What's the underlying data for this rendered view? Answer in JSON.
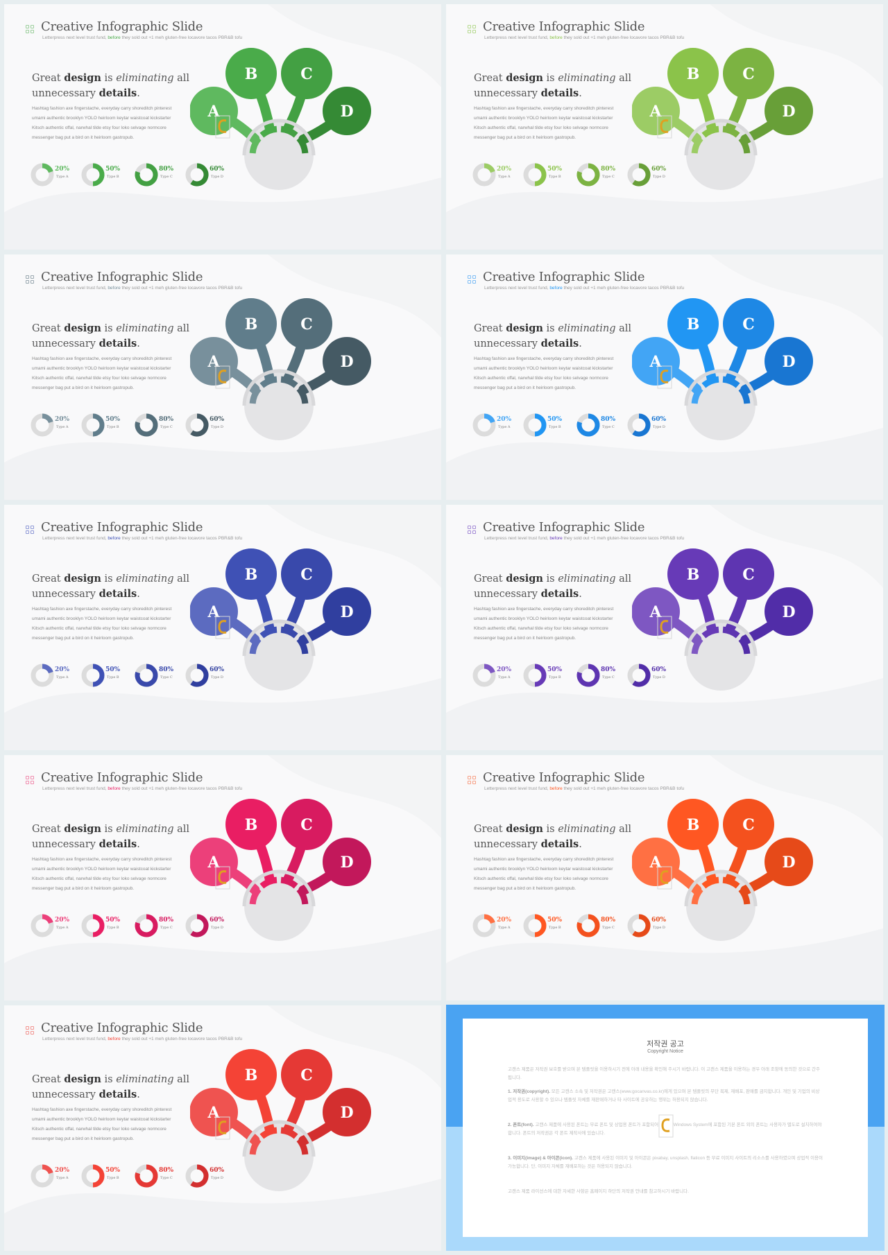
{
  "slide": {
    "title": "Creative Infographic Slide",
    "subtitle_pre": "Letterpress next level trust fund, ",
    "subtitle_hl": "before",
    "subtitle_post": " they sold out +1 meh gluten-free locavore tacos PBR&B tofu",
    "headline_1": "Great ",
    "headline_2": "design",
    "headline_3": " is ",
    "headline_4": "eliminating",
    "headline_5": " all",
    "headline_6": "unnecessary ",
    "headline_7": "details",
    "headline_8": ".",
    "body": "Hashtag fashion axe fingerstache, everyday carry shoreditch pinterest umami authentic brooklyn YOLO heirloom keytar waistcoat kickstarter Kitsch authentic offal, narwhal tilde etsy four loko selvage normcore messenger bag put a bird on it heirloom gastropub.",
    "bubbles": [
      "A",
      "B",
      "C",
      "D"
    ],
    "donuts": [
      {
        "pct": "20%",
        "type": "Type A",
        "value": 0.2
      },
      {
        "pct": "50%",
        "type": "Type B",
        "value": 0.5
      },
      {
        "pct": "80%",
        "type": "Type C",
        "value": 0.8
      },
      {
        "pct": "60%",
        "type": "Type D",
        "value": 0.6
      }
    ]
  },
  "themes": [
    {
      "name": "green",
      "colors": [
        "#5fb95f",
        "#4aab4a",
        "#43a043",
        "#358a35"
      ],
      "icon": "#9ccf9c",
      "hl": "#4aab4a"
    },
    {
      "name": "lime",
      "colors": [
        "#9ccc65",
        "#8bc34a",
        "#7cb342",
        "#689f38"
      ],
      "icon": "#b6d98f",
      "hl": "#8bc34a"
    },
    {
      "name": "blue-grey",
      "colors": [
        "#78909c",
        "#607d8b",
        "#546e7a",
        "#455a64"
      ],
      "icon": "#9aa8b0",
      "hl": "#78909c"
    },
    {
      "name": "blue",
      "colors": [
        "#42a5f5",
        "#2196f3",
        "#1e88e5",
        "#1976d2"
      ],
      "icon": "#7fbef5",
      "hl": "#2196f3"
    },
    {
      "name": "indigo",
      "colors": [
        "#5c6bc0",
        "#3f51b5",
        "#3949ab",
        "#303f9f"
      ],
      "icon": "#8f99d6",
      "hl": "#3f51b5"
    },
    {
      "name": "purple",
      "colors": [
        "#7e57c2",
        "#673ab7",
        "#5e35b1",
        "#512da8"
      ],
      "icon": "#a58bd6",
      "hl": "#673ab7"
    },
    {
      "name": "pink",
      "colors": [
        "#ec407a",
        "#e91e63",
        "#d81b60",
        "#c2185b"
      ],
      "icon": "#f08cae",
      "hl": "#e91e63"
    },
    {
      "name": "deep-orange",
      "colors": [
        "#ff7043",
        "#ff5722",
        "#f4511e",
        "#e64a19"
      ],
      "icon": "#f7a186",
      "hl": "#ff5722"
    },
    {
      "name": "red",
      "colors": [
        "#ef5350",
        "#f44336",
        "#e53935",
        "#d32f2f"
      ],
      "icon": "#f29591",
      "hl": "#f44336"
    }
  ],
  "copyright": {
    "title": "저작권 공고",
    "subtitle": "Copyright Notice",
    "intro": "고캔스 제품은 저작권 보호를 받으며 본 템플릿을 이용하시기 전에 아래 내용을 확인해 주시기 바랍니다. 이 고캔스 제품을 이용하는 경우 아래 조항에 동의한 것으로 간주됩니다.",
    "p1_title": "1. 저작권(copyright).",
    "p1": " 모든 고캔스 소속 및 저작권은 고캔스(www.gocanvas.co.kr)에게 있으며 본 템플릿의 무단 복제, 재배포, 판매를 금지합니다. 개인 및 기업의 비상업적 용도로 사용할 수 있으나 템플릿 자체를 재판매하거나 타 사이트에 공유하는 행위는 허용되지 않습니다.",
    "p2_title": "2. 폰트(font).",
    "p2": " 고캔스 제품에 사용된 폰트는 무료 폰트 및 상업용 폰트가 포함되어 있으며 Windows System에 포함된 기본 폰트 외의 폰트는 사용자가 별도로 설치하여야 합니다. 폰트의 저작권은 각 폰트 제작사에 있습니다.",
    "p3_title": "3. 이미지(image) & 아이콘(icon).",
    "p3": " 고캔스 제품에 사용된 이미지 및 아이콘은 pixabay, unsplash, flaticon 등 무료 이미지 사이트의 리소스를 사용하였으며 상업적 이용이 가능합니다. 단, 이미지 자체를 재배포하는 것은 허용되지 않습니다.",
    "outro": "고캔스 제품 라이선스에 대한 자세한 사항은 홈페이지 하단의 저작권 안내를 참고하시기 바랍니다."
  }
}
